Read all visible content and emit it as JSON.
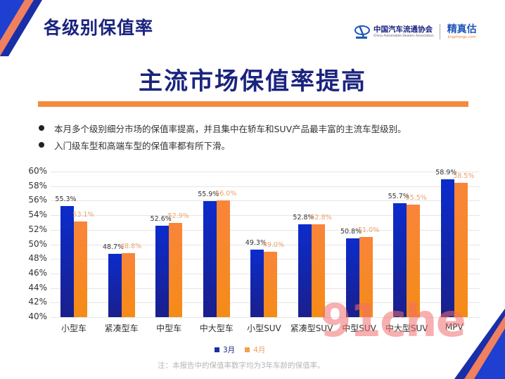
{
  "header": {
    "section_title": "各级别保值率",
    "logos": {
      "cada_cn": "中国汽车流通协会",
      "cada_en": "China Automobile Dealers Association",
      "jzg_cn": "精真估",
      "jzg_en": "jingzhengu.com"
    }
  },
  "headline": "主流市场保值率提高",
  "bullets": [
    "本月多个级别细分市场的保值率提高，并且集中在轿车和SUV产品最丰富的主流车型级别。",
    "入门级车型和高端车型的保值率都有所下滑。"
  ],
  "colors": {
    "navy": "#1a237e",
    "blue_bar": "#0b2ccc",
    "orange_bar": "#f58b16",
    "orange_rule": "#f28c3c"
  },
  "chart_data": {
    "type": "bar",
    "title": "",
    "xlabel": "",
    "ylabel": "",
    "ylim": [
      40,
      60
    ],
    "y_ticks": [
      "60%",
      "58%",
      "56%",
      "54%",
      "52%",
      "50%",
      "48%",
      "46%",
      "44%",
      "42%",
      "40%"
    ],
    "grid": true,
    "legend_position": "bottom",
    "categories": [
      "小型车",
      "紧凑型车",
      "中型车",
      "中大型车",
      "小型SUV",
      "紧凑型SUV",
      "中型SUV",
      "中大型SUV",
      "MPV"
    ],
    "series": [
      {
        "name": "3月",
        "color": "#0b2ccc",
        "values": [
          55.3,
          48.7,
          52.6,
          55.9,
          49.3,
          52.8,
          50.8,
          55.7,
          58.9
        ],
        "labels": [
          "55.3%",
          "48.7%",
          "52.6%",
          "55.9%",
          "49.3%",
          "52.8%",
          "50.8%",
          "55.7%",
          "58.9%"
        ]
      },
      {
        "name": "4月",
        "color": "#f58b16",
        "values": [
          53.1,
          48.8,
          52.9,
          56.0,
          49.0,
          52.8,
          51.0,
          55.5,
          58.5
        ],
        "labels": [
          "53.1%",
          "48.8%",
          "52.9%",
          "56.0%",
          "49.0%",
          "52.8%",
          "51.0%",
          "55.5%",
          "58.5%"
        ]
      }
    ]
  },
  "legend": {
    "s0": "3月",
    "s1": "4月"
  },
  "footnote": "注：本报告中的保值率数字均为3年车龄的保值率。",
  "watermark": "91che"
}
